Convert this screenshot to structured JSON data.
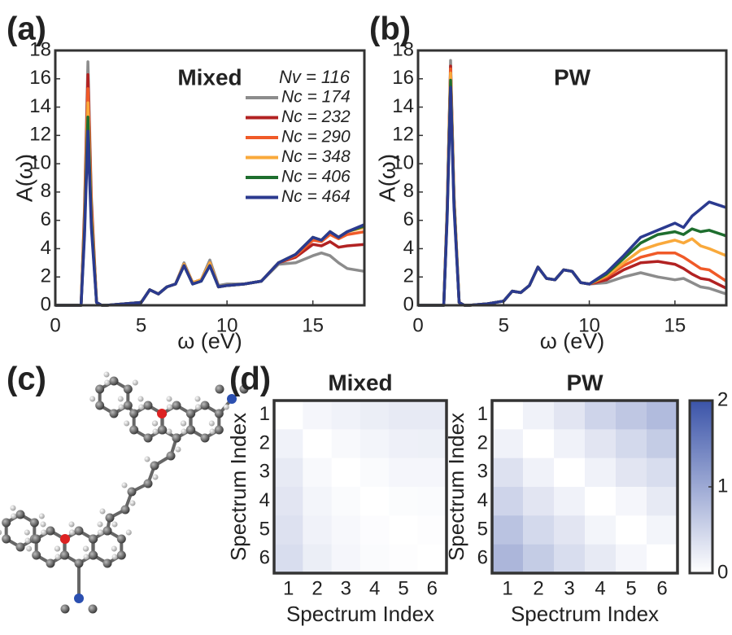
{
  "panel_c_label": "(c)",
  "chart_data": [
    {
      "type": "line",
      "panel_label": "(a)",
      "title": "Mixed",
      "x_label": "ω (eV)",
      "y_label": "A(ω)",
      "xlim": [
        0,
        18
      ],
      "ylim": [
        0,
        18
      ],
      "xticks": [
        0,
        5,
        10,
        15
      ],
      "yticks": [
        0,
        2,
        4,
        6,
        8,
        10,
        12,
        14,
        16,
        18
      ],
      "legend": "upper right",
      "legend_title": "Nv = 116",
      "legend_title_color": "#3b4fa8",
      "x": [
        0,
        1,
        1.5,
        1.7,
        1.9,
        2.1,
        2.4,
        2.7,
        3,
        4,
        5,
        5.5,
        6,
        6.5,
        7,
        7.5,
        8,
        8.5,
        9,
        9.5,
        10,
        11,
        12,
        13,
        14,
        15,
        15.5,
        16,
        16.5,
        17,
        18
      ],
      "series": [
        {
          "name": "Nc = 174",
          "color": "#8c8c8c",
          "values": [
            0,
            0,
            0,
            6.9,
            17.2,
            7.7,
            0.2,
            0,
            0,
            0.1,
            0.2,
            1.1,
            0.8,
            1.3,
            1.5,
            3.0,
            1.6,
            1.8,
            3.2,
            1.4,
            1.5,
            1.5,
            1.7,
            2.9,
            3.0,
            3.5,
            3.7,
            3.5,
            3.0,
            2.6,
            2.4
          ]
        },
        {
          "name": "Nc = 232",
          "color": "#b22222",
          "values": [
            0,
            0,
            0,
            6.5,
            16.3,
            7.3,
            0.2,
            0,
            0,
            0.1,
            0.2,
            1.1,
            0.8,
            1.3,
            1.5,
            2.9,
            1.6,
            1.8,
            3.0,
            1.3,
            1.4,
            1.5,
            1.7,
            3.0,
            3.4,
            4.3,
            4.2,
            4.5,
            4.1,
            4.2,
            4.3
          ]
        },
        {
          "name": "Nc = 290",
          "color": "#f05a28",
          "values": [
            0,
            0,
            0,
            6.1,
            15.3,
            6.9,
            0.2,
            0,
            0,
            0.1,
            0.2,
            1.1,
            0.8,
            1.3,
            1.5,
            2.9,
            1.6,
            1.8,
            3.0,
            1.3,
            1.4,
            1.5,
            1.7,
            3.0,
            3.5,
            4.6,
            4.5,
            5.0,
            4.7,
            5.0,
            5.2
          ]
        },
        {
          "name": "Nc = 348",
          "color": "#f9a93b",
          "values": [
            0,
            0,
            0,
            5.7,
            14.3,
            6.4,
            0.2,
            0,
            0,
            0.1,
            0.2,
            1.1,
            0.8,
            1.3,
            1.5,
            2.9,
            1.6,
            1.8,
            3.0,
            1.3,
            1.4,
            1.5,
            1.7,
            3.0,
            3.6,
            4.8,
            4.6,
            5.2,
            4.8,
            5.2,
            5.5
          ]
        },
        {
          "name": "Nc = 406",
          "color": "#1e6e2e",
          "values": [
            0,
            0,
            0,
            5.3,
            13.3,
            6.0,
            0.2,
            0,
            0,
            0.1,
            0.2,
            1.1,
            0.8,
            1.3,
            1.5,
            2.8,
            1.5,
            1.7,
            2.8,
            1.3,
            1.4,
            1.5,
            1.7,
            3.0,
            3.6,
            4.8,
            4.6,
            5.2,
            4.8,
            5.2,
            5.6
          ]
        },
        {
          "name": "Nc = 464",
          "color": "#2b3a8f",
          "values": [
            0,
            0,
            0,
            4.9,
            12.3,
            5.5,
            0.2,
            0,
            0,
            0.1,
            0.2,
            1.1,
            0.8,
            1.3,
            1.5,
            2.8,
            1.5,
            1.7,
            2.8,
            1.3,
            1.4,
            1.5,
            1.7,
            3.0,
            3.6,
            4.8,
            4.6,
            5.2,
            4.8,
            5.2,
            5.7
          ]
        }
      ]
    },
    {
      "type": "line",
      "panel_label": "(b)",
      "title": "PW",
      "x_label": "ω (eV)",
      "y_label": "A(ω)",
      "xlim": [
        0,
        18
      ],
      "ylim": [
        0,
        18
      ],
      "xticks": [
        0,
        5,
        10,
        15
      ],
      "yticks": [
        0,
        2,
        4,
        6,
        8,
        10,
        12,
        14,
        16,
        18
      ],
      "x": [
        0,
        1,
        1.5,
        1.7,
        1.9,
        2.1,
        2.4,
        2.7,
        3,
        4,
        5,
        5.5,
        6,
        6.5,
        7,
        7.5,
        8,
        8.5,
        9,
        9.5,
        10,
        11,
        12,
        13,
        14,
        15,
        15.5,
        16,
        16.5,
        17,
        18
      ],
      "series": [
        {
          "color": "#8c8c8c",
          "values": [
            0,
            0,
            0,
            6.9,
            17.3,
            7.8,
            0.2,
            0,
            0,
            0.1,
            0.3,
            1.0,
            0.9,
            1.4,
            2.7,
            1.9,
            1.8,
            2.5,
            2.4,
            1.6,
            1.5,
            1.6,
            2.0,
            2.3,
            2.0,
            1.8,
            1.9,
            1.6,
            1.3,
            1.2,
            0.8
          ]
        },
        {
          "color": "#b22222",
          "values": [
            0,
            0,
            0,
            6.8,
            16.9,
            7.6,
            0.2,
            0,
            0,
            0.1,
            0.3,
            1.0,
            0.9,
            1.4,
            2.7,
            1.9,
            1.8,
            2.5,
            2.4,
            1.6,
            1.5,
            1.8,
            2.5,
            3.0,
            3.1,
            2.9,
            2.6,
            2.2,
            1.9,
            1.8,
            1.2
          ]
        },
        {
          "color": "#f05a28",
          "values": [
            0,
            0,
            0,
            6.7,
            16.7,
            7.5,
            0.2,
            0,
            0,
            0.1,
            0.3,
            1.0,
            0.9,
            1.4,
            2.7,
            1.9,
            1.8,
            2.5,
            2.4,
            1.6,
            1.5,
            2.0,
            2.8,
            3.4,
            3.7,
            3.7,
            3.4,
            3.0,
            2.6,
            2.5,
            1.7
          ]
        },
        {
          "color": "#f9a93b",
          "values": [
            0,
            0,
            0,
            6.6,
            16.4,
            7.4,
            0.2,
            0,
            0,
            0.1,
            0.3,
            1.0,
            0.9,
            1.4,
            2.7,
            1.9,
            1.8,
            2.5,
            2.4,
            1.6,
            1.5,
            2.1,
            3.0,
            3.9,
            4.3,
            4.6,
            4.4,
            4.7,
            4.2,
            4.0,
            3.5
          ]
        },
        {
          "color": "#1e6e2e",
          "values": [
            0,
            0,
            0,
            6.4,
            15.9,
            7.2,
            0.2,
            0,
            0,
            0.1,
            0.3,
            1.0,
            0.9,
            1.4,
            2.7,
            1.9,
            1.8,
            2.5,
            2.4,
            1.6,
            1.5,
            2.2,
            3.3,
            4.4,
            5.0,
            5.2,
            5.0,
            5.4,
            5.2,
            5.3,
            4.9
          ]
        },
        {
          "color": "#2b3a8f",
          "values": [
            0,
            0,
            0,
            6.2,
            15.4,
            6.9,
            0.2,
            0,
            0,
            0.1,
            0.3,
            1.0,
            0.9,
            1.4,
            2.7,
            1.9,
            1.8,
            2.5,
            2.4,
            1.6,
            1.5,
            2.3,
            3.5,
            4.8,
            5.3,
            5.8,
            5.5,
            6.3,
            6.8,
            7.3,
            6.9
          ]
        }
      ]
    },
    {
      "type": "heatmap",
      "panel_label": "(d)",
      "title": "Mixed",
      "x_label": "Spectrum Index",
      "y_label": "Spectrum Index",
      "xlim": [
        0.5,
        6.5
      ],
      "ylim": [
        0.5,
        6.5
      ],
      "xticks": [
        1,
        2,
        3,
        4,
        5,
        6
      ],
      "yticks": [
        1,
        2,
        3,
        4,
        5,
        6
      ],
      "clim": [
        0,
        2
      ],
      "cmap": [
        "#ffffff",
        "#3b54a9"
      ],
      "values": [
        [
          0,
          0.1,
          0.15,
          0.2,
          0.25,
          0.25
        ],
        [
          0.15,
          0,
          0.07,
          0.12,
          0.17,
          0.18
        ],
        [
          0.25,
          0.07,
          0,
          0.05,
          0.1,
          0.1
        ],
        [
          0.3,
          0.12,
          0.05,
          0,
          0.04,
          0.05
        ],
        [
          0.35,
          0.15,
          0.08,
          0.03,
          0,
          0.02
        ],
        [
          0.4,
          0.2,
          0.1,
          0.05,
          0.02,
          0
        ]
      ]
    },
    {
      "type": "heatmap",
      "title": "PW",
      "x_label": "Spectrum Index",
      "y_label": "Spectrum Index",
      "xlim": [
        0.5,
        6.5
      ],
      "ylim": [
        0.5,
        6.5
      ],
      "xticks": [
        1,
        2,
        3,
        4,
        5,
        6
      ],
      "yticks": [
        1,
        2,
        3,
        4,
        5,
        6
      ],
      "clim": [
        0,
        2
      ],
      "cmap": [
        "#ffffff",
        "#3b54a9"
      ],
      "colorbar_ticks": [
        0,
        1,
        2
      ],
      "values": [
        [
          0,
          0.15,
          0.3,
          0.5,
          0.65,
          0.8
        ],
        [
          0.15,
          0,
          0.15,
          0.3,
          0.45,
          0.6
        ],
        [
          0.35,
          0.15,
          0,
          0.15,
          0.3,
          0.4
        ],
        [
          0.5,
          0.3,
          0.15,
          0,
          0.1,
          0.25
        ],
        [
          0.7,
          0.45,
          0.3,
          0.12,
          0,
          0.12
        ],
        [
          0.85,
          0.6,
          0.4,
          0.25,
          0.1,
          0
        ]
      ]
    }
  ]
}
